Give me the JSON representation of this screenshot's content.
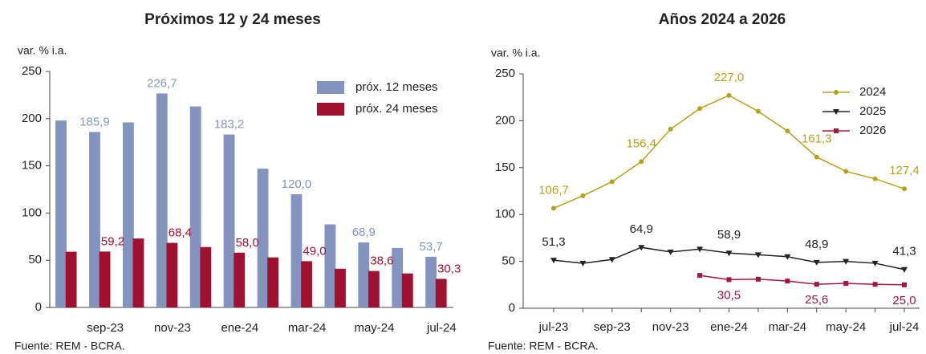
{
  "chart_data": [
    {
      "type": "bar",
      "title": "Próximos 12 y 24 meses",
      "y_label": "var. % i.a.",
      "source": "Fuente: REM - BCRA.",
      "categories": [
        null,
        "sep-23",
        null,
        "nov-23",
        null,
        "ene-24",
        null,
        "mar-24",
        null,
        "may-24",
        null,
        "jul-24"
      ],
      "series": [
        {
          "name": "próx. 12 meses",
          "color": "#8395bf",
          "values": [
            198,
            185.9,
            196,
            226.7,
            213,
            183.2,
            147,
            120.0,
            88,
            68.9,
            63,
            53.7
          ],
          "value_labels": [
            null,
            "185,9",
            null,
            "226,7",
            null,
            "183,2",
            null,
            "120,0",
            null,
            "68,9",
            null,
            "53,7"
          ]
        },
        {
          "name": "próx. 24 meses",
          "color": "#a0112f",
          "values": [
            59,
            59.2,
            73,
            68.4,
            64,
            58.0,
            53,
            49.0,
            41,
            38.6,
            36,
            30.3
          ],
          "value_labels": [
            null,
            "59,2",
            null,
            "68,4",
            null,
            "58,0",
            null,
            "49,0",
            null,
            "38,6",
            null,
            "30,3"
          ]
        }
      ],
      "ylim": [
        0,
        250
      ],
      "yticks": [
        0,
        50,
        100,
        150,
        200,
        250
      ],
      "legend": "upper right"
    },
    {
      "type": "line",
      "title": "Años 2024 a 2026",
      "y_label": "var. % i.a.",
      "source": "Fuente: REM - BCRA.",
      "categories": [
        "jul-23",
        null,
        "sep-23",
        null,
        "nov-23",
        null,
        "ene-24",
        null,
        "mar-24",
        null,
        "may-24",
        null,
        "jul-24"
      ],
      "series": [
        {
          "name": "2024",
          "color": "#b5a21b",
          "marker": "circle",
          "values": [
            106.7,
            120,
            135,
            156.4,
            191,
            213,
            227.0,
            210,
            189,
            161.3,
            146,
            138,
            127.4
          ],
          "value_labels": [
            "106,7",
            null,
            null,
            "156,4",
            null,
            null,
            "227,0",
            null,
            null,
            "161,3",
            null,
            null,
            "127,4"
          ]
        },
        {
          "name": "2025",
          "color": "#222222",
          "marker": "triangle",
          "values": [
            51.3,
            48,
            52,
            64.9,
            60,
            63,
            58.9,
            57,
            55,
            48.9,
            50,
            48,
            41.3
          ],
          "value_labels": [
            "51,3",
            null,
            null,
            "64,9",
            null,
            null,
            "58,9",
            null,
            null,
            "48,9",
            null,
            null,
            "41,3"
          ]
        },
        {
          "name": "2026",
          "color": "#a0173f",
          "marker": "square",
          "values": [
            null,
            null,
            null,
            null,
            null,
            35,
            30.5,
            31,
            29,
            25.6,
            26.5,
            25.5,
            25.0
          ],
          "value_labels": [
            null,
            null,
            null,
            null,
            null,
            null,
            "30,5",
            null,
            null,
            "25,6",
            null,
            null,
            "25,0"
          ]
        }
      ],
      "ylim": [
        0,
        250
      ],
      "yticks": [
        0,
        50,
        100,
        150,
        200,
        250
      ],
      "legend": "upper right"
    }
  ]
}
